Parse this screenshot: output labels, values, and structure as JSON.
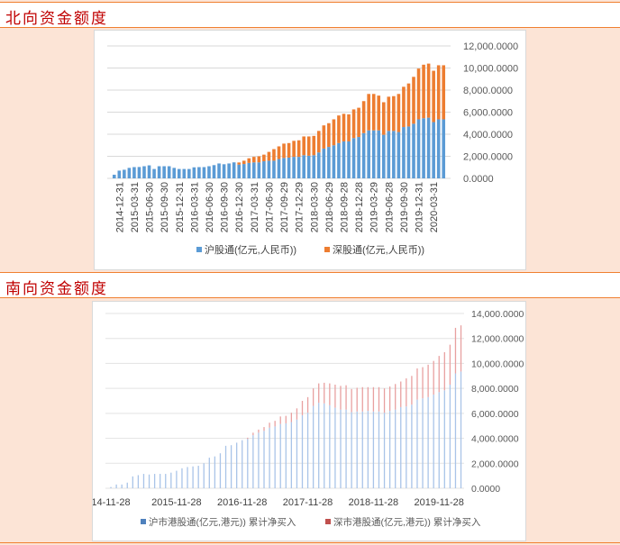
{
  "sections": [
    {
      "title": "北向资金额度"
    },
    {
      "title": "南向资金额度"
    }
  ],
  "chart_data": [
    {
      "type": "bar",
      "stacked": true,
      "title": "",
      "xlabel": "",
      "ylabel": "",
      "ylim": [
        0,
        12000
      ],
      "y_ticks": [
        "0.0000",
        "2,000.0000",
        "4,000.0000",
        "6,000.0000",
        "8,000.0000",
        "10,000.0000",
        "12,000.0000"
      ],
      "y_axis_position": "right",
      "grid": true,
      "legend": "bottom",
      "x_tick_labels": [
        "2014-12-31",
        "2015-03-31",
        "2015-06-30",
        "2015-09-30",
        "2015-12-31",
        "2016-03-31",
        "2016-06-30",
        "2016-09-30",
        "2016-12-30",
        "2017-03-31",
        "2017-06-30",
        "2017-09-29",
        "2017-12-29",
        "2018-03-30",
        "2018-06-29",
        "2018-09-28",
        "2018-12-28",
        "2019-03-29",
        "2019-06-28",
        "2019-09-30",
        "2019-12-31",
        "2020-03-31"
      ],
      "series": [
        {
          "name": "沪股通(亿元,人民币))",
          "color": "#5b9bd5",
          "values": [
            330,
            700,
            780,
            950,
            1020,
            1030,
            1100,
            1180,
            850,
            1100,
            1100,
            1100,
            950,
            850,
            850,
            850,
            1000,
            1020,
            1020,
            1100,
            1200,
            1350,
            1280,
            1350,
            1450,
            1250,
            1300,
            1400,
            1450,
            1450,
            1550,
            1600,
            1600,
            1750,
            1850,
            1880,
            1950,
            1950,
            2100,
            2050,
            2100,
            2350,
            2700,
            2850,
            3000,
            3200,
            3350,
            3350,
            3650,
            3750,
            4100,
            4350,
            4350,
            4350,
            3950,
            4300,
            4300,
            4200,
            4650,
            4700,
            4950,
            5350,
            5450,
            5500,
            5100,
            5350,
            5350
          ]
        },
        {
          "name": "深股通(亿元,人民币))",
          "color": "#ed7d31",
          "values": [
            0,
            0,
            0,
            0,
            0,
            0,
            0,
            0,
            0,
            0,
            0,
            0,
            0,
            0,
            0,
            0,
            0,
            0,
            0,
            0,
            0,
            0,
            0,
            0,
            0,
            190,
            300,
            420,
            500,
            550,
            600,
            800,
            1050,
            1150,
            1300,
            1320,
            1450,
            1500,
            1700,
            1750,
            1750,
            1950,
            2100,
            2150,
            2350,
            2500,
            2500,
            2450,
            2600,
            2650,
            2900,
            3300,
            3300,
            3150,
            2950,
            3100,
            3150,
            3450,
            3650,
            3900,
            4250,
            4600,
            4850,
            4900,
            4650,
            4900,
            4900
          ]
        }
      ]
    },
    {
      "type": "bar",
      "stacked": true,
      "title": "",
      "xlabel": "",
      "ylabel": "",
      "ylim": [
        0,
        14000
      ],
      "y_ticks": [
        "0.0000",
        "2,000.0000",
        "4,000.0000",
        "6,000.0000",
        "8,000.0000",
        "10,000.0000",
        "12,000.0000",
        "14,000.0000"
      ],
      "y_axis_position": "right",
      "grid": true,
      "legend": "bottom",
      "x_tick_labels": [
        "14-11-28",
        "2015-11-28",
        "2016-11-28",
        "2017-11-28",
        "2018-11-28",
        "2019-11-28"
      ],
      "series": [
        {
          "name": "沪市港股通(亿元,港元)) 累计净买入",
          "color": "#4f81bd",
          "values": [
            100,
            300,
            300,
            450,
            950,
            1050,
            1150,
            1100,
            1150,
            1150,
            1150,
            1250,
            1400,
            1600,
            1700,
            1750,
            1800,
            2000,
            2450,
            2550,
            2800,
            3400,
            3450,
            3650,
            3850,
            3950,
            4250,
            4450,
            4600,
            4850,
            4950,
            5150,
            5200,
            5300,
            5500,
            5850,
            6050,
            6600,
            6850,
            6800,
            6650,
            6450,
            6300,
            6300,
            6100,
            6150,
            6150,
            6200,
            6150,
            6150,
            6050,
            6200,
            6300,
            6500,
            6550,
            6700,
            7100,
            7200,
            7300,
            7500,
            7700,
            7850,
            8300,
            9200,
            9350
          ]
        },
        {
          "name": "深市港股通(亿元,港元)) 累计净买入",
          "color": "#c0504d",
          "values": [
            0,
            0,
            0,
            0,
            0,
            0,
            0,
            0,
            0,
            0,
            0,
            0,
            0,
            0,
            0,
            0,
            0,
            0,
            0,
            0,
            0,
            0,
            0,
            0,
            0,
            100,
            200,
            250,
            300,
            400,
            450,
            600,
            600,
            750,
            900,
            1150,
            1250,
            1400,
            1550,
            1650,
            1750,
            1850,
            1900,
            1950,
            1850,
            1900,
            1950,
            1900,
            1950,
            1950,
            1950,
            1950,
            2050,
            2050,
            2250,
            2300,
            2500,
            2500,
            2600,
            2700,
            2900,
            3050,
            3200,
            3650,
            3700
          ]
        }
      ]
    }
  ]
}
